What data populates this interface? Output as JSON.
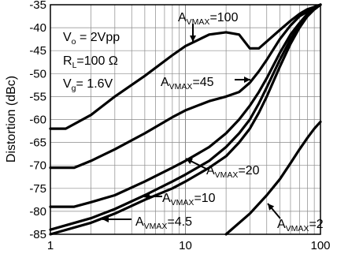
{
  "chart_data": {
    "type": "line",
    "xscale": "log",
    "xlim": [
      1,
      100
    ],
    "ylim": [
      -85,
      -35
    ],
    "grid": true,
    "xticks": [
      1,
      10,
      100
    ],
    "xtick_labels": [
      "1",
      "10",
      "100"
    ],
    "yticks": [
      -35,
      -40,
      -45,
      -50,
      -55,
      -60,
      -65,
      -70,
      -75,
      -80,
      -85
    ],
    "ytick_labels": [
      "-35",
      "-40",
      "-45",
      "-50",
      "-55",
      "-60",
      "-65",
      "-70",
      "-75",
      "-80",
      "-85"
    ],
    "xlabel": "",
    "ylabel": "Distortion (dBc)",
    "conditions": [
      {
        "main": "V",
        "sub": "o",
        "rest": " = 2Vpp"
      },
      {
        "main": "R",
        "sub": "L",
        "rest": "=100 Ω"
      },
      {
        "main": "V",
        "sub": "g",
        "rest": "= 1.6V"
      }
    ],
    "series": [
      {
        "label_main": "A",
        "label_sub": "VMAX",
        "label_rest": "=100",
        "x": [
          1,
          1.3,
          2,
          3,
          5,
          8,
          10,
          15,
          20,
          25,
          30,
          35,
          40,
          50,
          60,
          70,
          80,
          90,
          100
        ],
        "y": [
          -62,
          -62,
          -59,
          -55,
          -50.5,
          -46,
          -44,
          -41.5,
          -41,
          -41.5,
          -44.5,
          -44.5,
          -43,
          -40.5,
          -38.5,
          -37,
          -36,
          -35.5,
          -35
        ]
      },
      {
        "label_main": "A",
        "label_sub": "VMAX",
        "label_rest": "=45",
        "x": [
          1,
          1.5,
          2,
          3,
          5,
          8,
          10,
          15,
          20,
          25,
          30,
          35,
          40,
          50,
          60,
          70,
          80,
          90,
          100
        ],
        "y": [
          -70.5,
          -70.5,
          -69,
          -66.5,
          -63,
          -59.5,
          -58,
          -56,
          -55,
          -54,
          -52,
          -49.5,
          -47,
          -42.5,
          -39.5,
          -37.5,
          -36.5,
          -35.5,
          -35
        ]
      },
      {
        "label_main": "A",
        "label_sub": "VMAX",
        "label_rest": "=20",
        "x": [
          1,
          1.5,
          2,
          3,
          5,
          8,
          10,
          15,
          20,
          25,
          30,
          35,
          40,
          50,
          60,
          70,
          80,
          90,
          100
        ],
        "y": [
          -79,
          -79,
          -78,
          -76.5,
          -73.5,
          -70.5,
          -69,
          -66,
          -63,
          -60,
          -57,
          -54,
          -51,
          -45.5,
          -41.5,
          -39,
          -37,
          -36,
          -35
        ]
      },
      {
        "label_main": "A",
        "label_sub": "VMAX",
        "label_rest": "=10",
        "x": [
          1,
          2,
          3,
          5,
          8,
          10,
          15,
          20,
          25,
          30,
          35,
          40,
          50,
          60,
          70,
          80,
          90,
          100
        ],
        "y": [
          -84,
          -81.5,
          -79.5,
          -76.5,
          -73.5,
          -72,
          -69,
          -66,
          -63,
          -60,
          -56.5,
          -53,
          -47,
          -42.5,
          -39.5,
          -37.5,
          -36,
          -35
        ]
      },
      {
        "label_main": "A",
        "label_sub": "VMAX",
        "label_rest": "=4.5",
        "x": [
          1,
          2,
          3,
          5,
          8,
          10,
          15,
          20,
          25,
          30,
          35,
          40,
          50,
          60,
          70,
          80,
          90,
          100
        ],
        "y": [
          -85,
          -82.5,
          -80.5,
          -77.5,
          -75,
          -73.5,
          -70.5,
          -68,
          -65,
          -62,
          -58.5,
          -55,
          -48.5,
          -43.5,
          -40,
          -37.5,
          -36,
          -35
        ]
      },
      {
        "label_main": "A",
        "label_sub": "VMAX",
        "label_rest": "=2",
        "x": [
          20,
          30,
          40,
          50,
          60,
          70,
          80,
          90,
          100
        ],
        "y": [
          -85,
          -80.5,
          -76.5,
          -73,
          -69.5,
          -66.5,
          -64,
          -62,
          -60.5
        ]
      }
    ]
  }
}
